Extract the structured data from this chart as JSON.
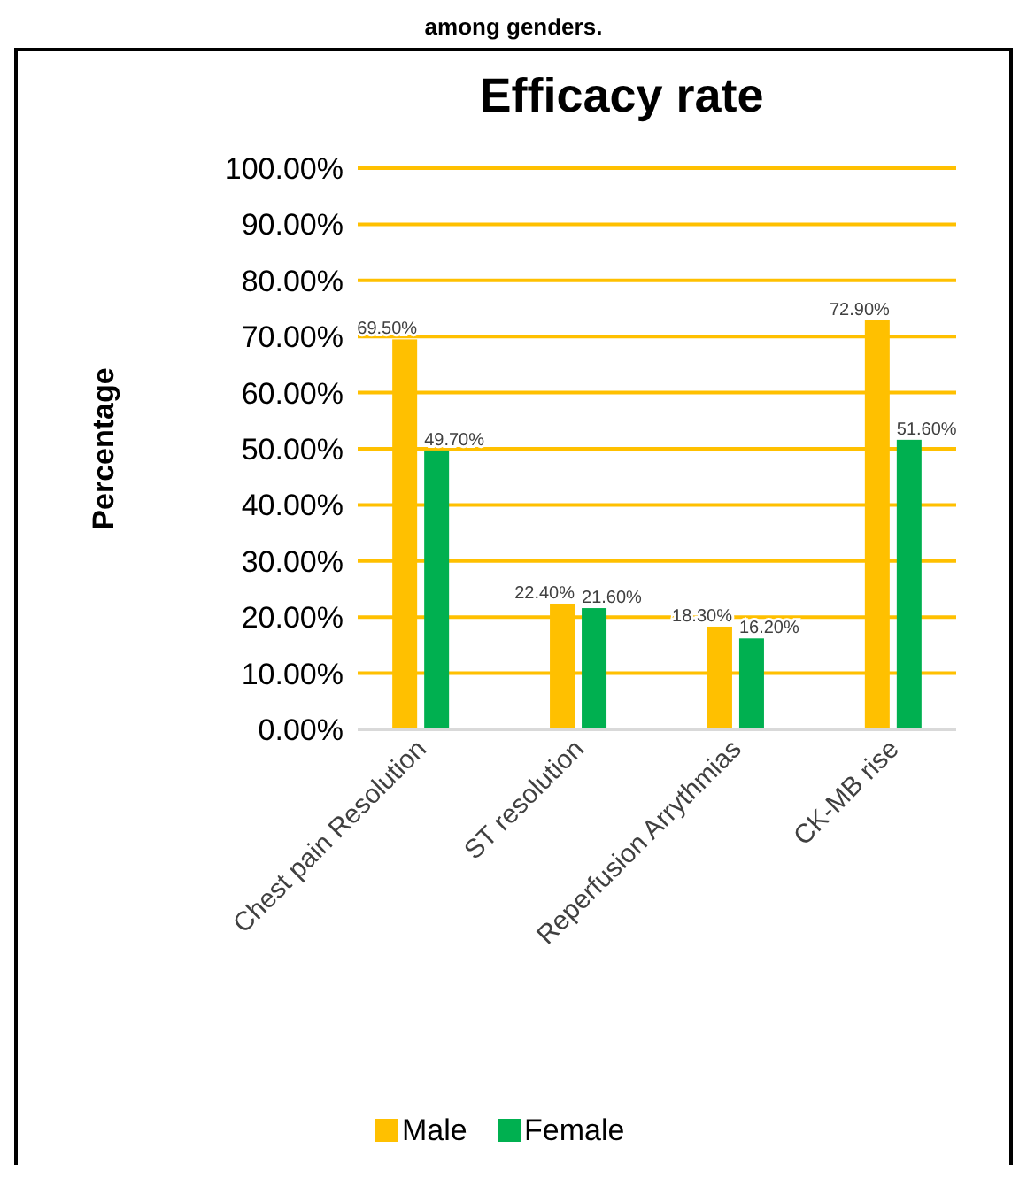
{
  "chart_data": {
    "type": "bar",
    "title": "Efficacy rate",
    "ylabel": "Percentage",
    "annotations": [
      "among genders."
    ],
    "categories": [
      "Chest pain Resolution",
      "ST resolution",
      "Reperfusion Arrythmias",
      "CK-MB rise"
    ],
    "series": [
      {
        "name": "Male",
        "color": "#ffc000",
        "values": [
          69.5,
          22.4,
          18.3,
          72.9
        ],
        "value_labels": [
          "69.50%",
          "22.40%",
          "18.30%",
          "72.90%"
        ]
      },
      {
        "name": "Female",
        "color": "#00b050",
        "values": [
          49.7,
          21.6,
          16.2,
          51.6
        ],
        "value_labels": [
          "49.70%",
          "21.60%",
          "16.20%",
          "51.60%"
        ]
      }
    ],
    "ylim": [
      0,
      100
    ],
    "yticks": [
      {
        "value": 0,
        "label": "0.00%"
      },
      {
        "value": 10,
        "label": "10.00%"
      },
      {
        "value": 20,
        "label": "20.00%"
      },
      {
        "value": 30,
        "label": "30.00%"
      },
      {
        "value": 40,
        "label": "40.00%"
      },
      {
        "value": 50,
        "label": "50.00%"
      },
      {
        "value": 60,
        "label": "60.00%"
      },
      {
        "value": 70,
        "label": "70.00%"
      },
      {
        "value": 80,
        "label": "80.00%"
      },
      {
        "value": 90,
        "label": "90.00%"
      },
      {
        "value": 100,
        "label": "100.00%"
      }
    ],
    "grid": "y",
    "legend": "bottom"
  }
}
